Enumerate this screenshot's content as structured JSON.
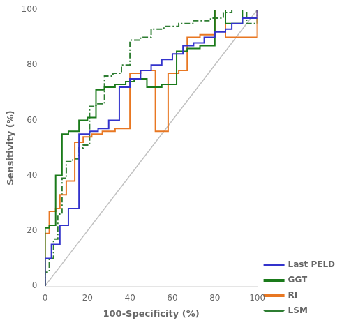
{
  "chart_data": {
    "type": "line",
    "xlabel": "100-Specificity (%)",
    "ylabel": "Sensitivity (%)",
    "xlim": [
      0,
      100
    ],
    "ylim": [
      0,
      100
    ],
    "xticks": [
      0,
      20,
      40,
      60,
      80,
      100
    ],
    "yticks": [
      0,
      20,
      40,
      60,
      80,
      100
    ],
    "grid": false,
    "legend": "lower right",
    "series": [
      {
        "color": "#c0c0c0",
        "line_style": "solid",
        "x": [
          0,
          100
        ],
        "values": [
          0,
          100
        ]
      },
      {
        "name": "Last PELD",
        "color": "#3333cc",
        "line_style": "solid",
        "x": [
          0,
          0,
          3,
          3,
          7,
          7,
          11,
          11,
          16,
          16,
          21,
          21,
          25,
          25,
          30,
          30,
          35,
          35,
          40,
          40,
          45,
          45,
          50,
          50,
          55,
          55,
          60,
          60,
          65,
          65,
          70,
          70,
          75,
          75,
          80,
          80,
          85,
          85,
          88,
          88,
          93,
          93,
          100,
          100
        ],
        "values": [
          0,
          10,
          10,
          15,
          15,
          22,
          22,
          28,
          28,
          55,
          55,
          56,
          56,
          57,
          57,
          60,
          60,
          72,
          72,
          75,
          75,
          78,
          78,
          80,
          80,
          82,
          82,
          84,
          84,
          87,
          87,
          88,
          88,
          90,
          90,
          92,
          92,
          93,
          93,
          95,
          95,
          97,
          97,
          100
        ]
      },
      {
        "name": "GGT",
        "color": "#1a7a1a",
        "line_style": "solid",
        "x": [
          0,
          0,
          2,
          2,
          5,
          5,
          8,
          8,
          11,
          11,
          16,
          16,
          20,
          20,
          24,
          24,
          28,
          28,
          33,
          33,
          38,
          38,
          42,
          42,
          48,
          48,
          55,
          55,
          62,
          62,
          67,
          67,
          73,
          73,
          80,
          80,
          85,
          85,
          93,
          93,
          100,
          100
        ],
        "values": [
          0,
          21,
          21,
          22,
          22,
          40,
          40,
          55,
          55,
          56,
          56,
          60,
          60,
          61,
          61,
          71,
          71,
          72,
          72,
          73,
          73,
          74,
          74,
          75,
          75,
          72,
          72,
          73,
          73,
          85,
          85,
          86,
          86,
          87,
          87,
          100,
          100,
          95,
          95,
          100,
          100,
          100
        ]
      },
      {
        "name": "RI",
        "color": "#e87722",
        "line_style": "solid",
        "x": [
          0,
          0,
          2,
          2,
          5,
          5,
          7,
          7,
          10,
          10,
          14,
          14,
          18,
          18,
          22,
          22,
          27,
          27,
          33,
          33,
          40,
          40,
          45,
          45,
          52,
          52,
          58,
          58,
          63,
          63,
          67,
          67,
          73,
          73,
          80,
          80,
          85,
          85,
          100,
          100
        ],
        "values": [
          0,
          19,
          19,
          27,
          27,
          28,
          28,
          33,
          33,
          38,
          38,
          52,
          52,
          54,
          54,
          55,
          55,
          56,
          56,
          57,
          57,
          77,
          77,
          78,
          78,
          56,
          56,
          77,
          77,
          78,
          78,
          90,
          90,
          91,
          91,
          100,
          100,
          90,
          90,
          100
        ]
      },
      {
        "name": "LSM",
        "color": "#2e7d32",
        "line_style": "dashdot",
        "x": [
          0,
          0,
          2,
          2,
          4,
          4,
          6,
          6,
          8,
          8,
          10,
          10,
          13,
          13,
          16,
          16,
          18,
          18,
          21,
          21,
          24,
          24,
          28,
          28,
          32,
          32,
          36,
          36,
          40,
          40,
          45,
          45,
          50,
          50,
          56,
          56,
          63,
          63,
          70,
          70,
          78,
          78,
          84,
          84,
          88,
          88,
          95,
          95,
          100,
          100
        ],
        "values": [
          0,
          5,
          5,
          10,
          10,
          17,
          17,
          26,
          26,
          39,
          39,
          45,
          45,
          46,
          46,
          50,
          50,
          51,
          51,
          65,
          65,
          66,
          66,
          76,
          76,
          77,
          77,
          80,
          80,
          89,
          89,
          90,
          90,
          93,
          93,
          94,
          94,
          95,
          95,
          96,
          96,
          97,
          97,
          99,
          99,
          100,
          100,
          95,
          95,
          100
        ]
      }
    ]
  }
}
